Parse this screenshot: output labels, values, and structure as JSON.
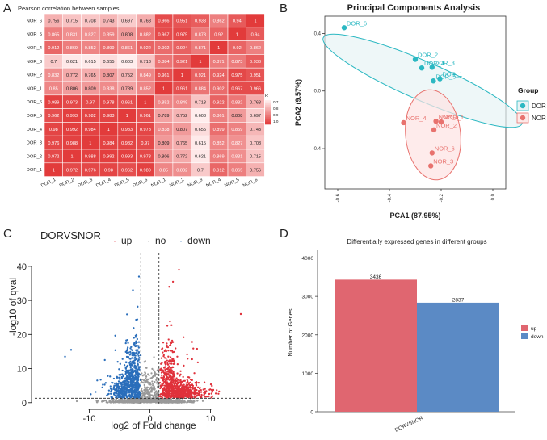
{
  "panel_labels": {
    "a": "A",
    "b": "B",
    "c": "C",
    "d": "D"
  },
  "chart_data": [
    {
      "type": "heatmap",
      "title": "Pearson correlation between samples",
      "row_labels": [
        "NOR_6",
        "NOR_5",
        "NOR_4",
        "NOR_3",
        "NOR_2",
        "NOR_1",
        "DOR_6",
        "DOR_5",
        "DOR_4",
        "DOR_3",
        "DOR_2",
        "DOR_1"
      ],
      "col_labels": [
        "DOR_1",
        "DOR_2",
        "DOR_3",
        "DOR_4",
        "DOR_5",
        "DOR_6",
        "NOR_1",
        "NOR_2",
        "NOR_3",
        "NOR_4",
        "NOR_5",
        "NOR_6"
      ],
      "values": [
        [
          "0.756",
          "0.715",
          "0.708",
          "0.743",
          "0.697",
          "0.768",
          "0.966",
          "0.951",
          "0.933",
          "0.862",
          "0.94",
          "1"
        ],
        [
          "0.865",
          "0.831",
          "0.827",
          "0.859",
          "0.808",
          "0.882",
          "0.967",
          "0.975",
          "0.873",
          "0.92",
          "1",
          "0.94"
        ],
        [
          "0.912",
          "0.869",
          "0.852",
          "0.899",
          "0.861",
          "0.922",
          "0.902",
          "0.924",
          "0.871",
          "1",
          "0.92",
          "0.862"
        ],
        [
          "0.7",
          "0.621",
          "0.615",
          "0.655",
          "0.603",
          "0.713",
          "0.884",
          "0.921",
          "1",
          "0.871",
          "0.873",
          "0.933"
        ],
        [
          "0.832",
          "0.772",
          "0.765",
          "0.807",
          "0.752",
          "0.849",
          "0.961",
          "1",
          "0.921",
          "0.924",
          "0.975",
          "0.951"
        ],
        [
          "0.85",
          "0.806",
          "0.809",
          "0.838",
          "0.789",
          "0.852",
          "1",
          "0.961",
          "0.884",
          "0.902",
          "0.967",
          "0.966"
        ],
        [
          "0.989",
          "0.973",
          "0.97",
          "0.978",
          "0.961",
          "1",
          "0.852",
          "0.849",
          "0.713",
          "0.922",
          "0.882",
          "0.768"
        ],
        [
          "0.962",
          "0.993",
          "0.982",
          "0.983",
          "1",
          "0.961",
          "0.789",
          "0.752",
          "0.603",
          "0.861",
          "0.808",
          "0.697"
        ],
        [
          "0.98",
          "0.992",
          "0.984",
          "1",
          "0.983",
          "0.978",
          "0.838",
          "0.807",
          "0.655",
          "0.899",
          "0.859",
          "0.743"
        ],
        [
          "0.976",
          "0.988",
          "1",
          "0.984",
          "0.982",
          "0.97",
          "0.809",
          "0.765",
          "0.615",
          "0.852",
          "0.827",
          "0.708"
        ],
        [
          "0.972",
          "1",
          "0.988",
          "0.992",
          "0.993",
          "0.973",
          "0.806",
          "0.772",
          "0.621",
          "0.869",
          "0.831",
          "0.715"
        ],
        [
          "1",
          "0.972",
          "0.976",
          "0.98",
          "0.962",
          "0.989",
          "0.85",
          "0.832",
          "0.7",
          "0.912",
          "0.865",
          "0.756"
        ]
      ],
      "legend_title": "R",
      "legend_ticks": [
        "0.7",
        "0.8",
        "0.9",
        "1.0"
      ],
      "color_low": "#ffeeee",
      "color_high": "#e23b3b"
    },
    {
      "type": "scatter",
      "title": "Principal Components Analysis",
      "xlabel": "PCA1 (87.95%)",
      "ylabel": "PCA2 (9.57%)",
      "xlim": [
        -0.65,
        0.05
      ],
      "ylim": [
        -0.68,
        0.52
      ],
      "xticks": [
        "-0.6",
        "-0.4",
        "-0.2",
        "0.0"
      ],
      "yticks": [
        "0.4",
        "0.0",
        "-0.4"
      ],
      "legend_title": "Group",
      "groups": [
        {
          "name": "DOR",
          "color": "#2bb8c2",
          "fill": "#e8f3f5",
          "points": [
            {
              "label": "DOR_6",
              "x": -0.575,
              "y": 0.44
            },
            {
              "label": "DOR_2",
              "x": -0.3,
              "y": 0.22
            },
            {
              "label": "DOR_3",
              "x": -0.235,
              "y": 0.165
            },
            {
              "label": "DOR_4",
              "x": -0.275,
              "y": 0.16
            },
            {
              "label": "DOR_1",
              "x": -0.205,
              "y": 0.085
            },
            {
              "label": "DOR_5",
              "x": -0.23,
              "y": 0.07
            }
          ]
        },
        {
          "name": "NOR",
          "color": "#e8726e",
          "fill": "#fde9e8",
          "points": [
            {
              "label": "NOR_4",
              "x": -0.345,
              "y": -0.22
            },
            {
              "label": "NOR_5",
              "x": -0.22,
              "y": -0.21
            },
            {
              "label": "NOR_1",
              "x": -0.2,
              "y": -0.215
            },
            {
              "label": "NOR_2",
              "x": -0.228,
              "y": -0.27
            },
            {
              "label": "NOR_6",
              "x": -0.235,
              "y": -0.43
            },
            {
              "label": "NOR_3",
              "x": -0.24,
              "y": -0.52
            }
          ]
        }
      ]
    },
    {
      "type": "scatter",
      "title": "DORVSNOR",
      "xlabel": "log2 of Fold change",
      "ylabel": "-log10 of qval",
      "xlim": [
        -19,
        17
      ],
      "ylim": [
        -1,
        44
      ],
      "xticks": [
        -10,
        0,
        10
      ],
      "yticks": [
        0,
        10,
        20,
        30,
        40
      ],
      "legend": [
        {
          "name": "up",
          "color": "#e0313b"
        },
        {
          "name": "no",
          "color": "#999999"
        },
        {
          "name": "down",
          "color": "#2a6ebb"
        }
      ],
      "threshold_x": [
        -1.5,
        1.5
      ],
      "threshold_y": 1.3
    },
    {
      "type": "bar",
      "title": "Differentially expressed genes in different groups",
      "categories": [
        "DORVSNOR"
      ],
      "series": [
        {
          "name": "up",
          "values": [
            3436
          ],
          "color": "#e06670"
        },
        {
          "name": "down",
          "values": [
            2837
          ],
          "color": "#5b8ac5"
        }
      ],
      "ylabel": "Number of Genes",
      "ylim": [
        0,
        4200
      ],
      "yticks": [
        0,
        1000,
        2000,
        3000,
        4000
      ]
    }
  ]
}
